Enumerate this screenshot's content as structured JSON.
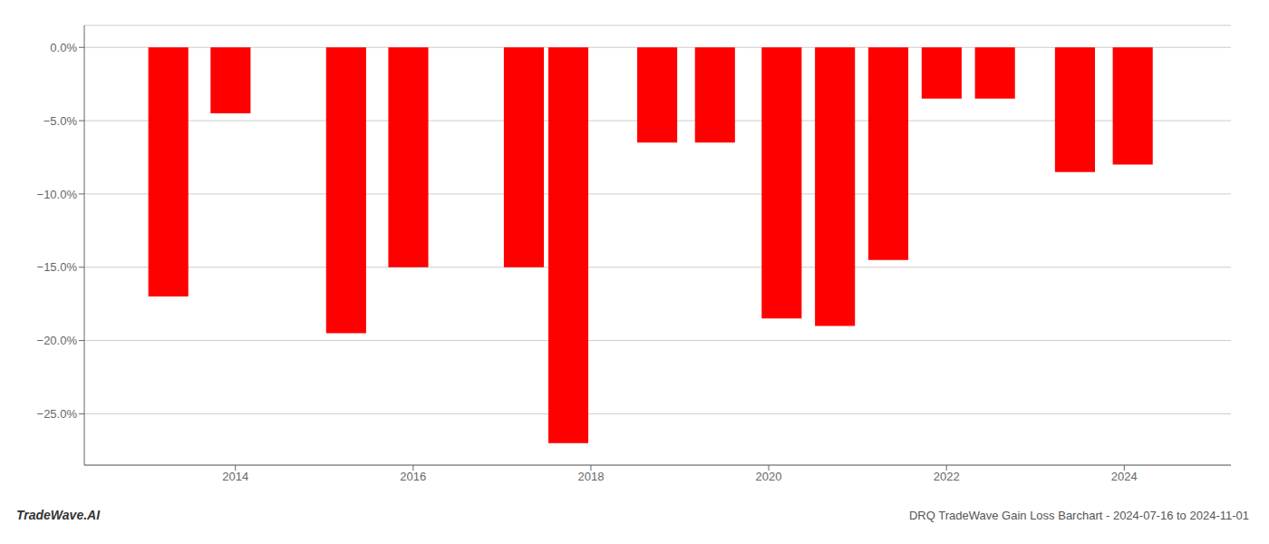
{
  "chart_data": {
    "type": "bar",
    "title": "DRQ TradeWave Gain Loss Barchart - 2024-07-16 to 2024-11-01",
    "annotations": [
      "TradeWave.AI"
    ],
    "x": [
      2013.25,
      2013.95,
      2015.25,
      2015.95,
      2017.25,
      2017.75,
      2018.75,
      2019.4,
      2020.15,
      2020.75,
      2021.35,
      2021.95,
      2022.55,
      2023.45,
      2024.1
    ],
    "values": [
      -17.0,
      -4.5,
      -19.5,
      -15.0,
      -15.0,
      -27.0,
      -6.5,
      -6.5,
      -18.5,
      -19.0,
      -14.5,
      -3.5,
      -3.5,
      -8.5,
      -8.0
    ],
    "color": "#ff0000",
    "xlim": [
      2012.3,
      2025.2
    ],
    "xticks": [
      2014,
      2016,
      2018,
      2020,
      2022,
      2024
    ],
    "ylim": [
      -28.5,
      1.5
    ],
    "yticks": [
      {
        "value": 0.0,
        "label": "0.0%"
      },
      {
        "value": -5.0,
        "label": "−5.0%"
      },
      {
        "value": -10.0,
        "label": "−10.0%"
      },
      {
        "value": -15.0,
        "label": "−15.0%"
      },
      {
        "value": -20.0,
        "label": "−20.0%"
      },
      {
        "value": -25.0,
        "label": "−25.0%"
      }
    ],
    "grid": true
  }
}
